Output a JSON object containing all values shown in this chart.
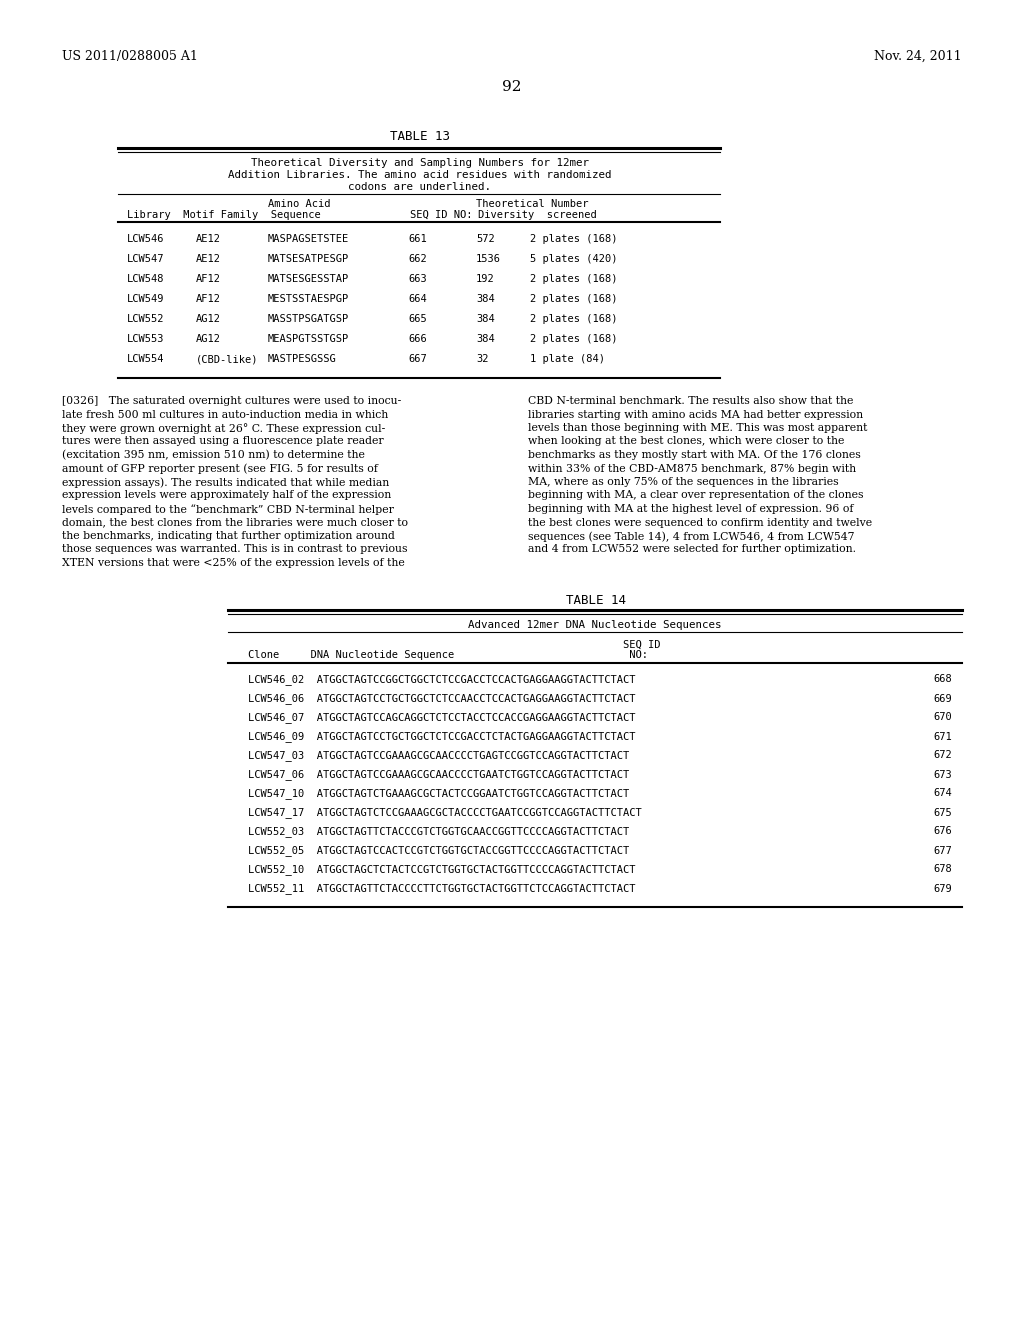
{
  "header_left": "US 2011/0288005 A1",
  "header_right": "Nov. 24, 2011",
  "page_number": "92",
  "table13_title": "TABLE 13",
  "table13_caption_lines": [
    "Theoretical Diversity and Sampling Numbers for 12mer",
    "Addition Libraries. The amino acid residues with randomized",
    "codons are underlined."
  ],
  "table13_rows": [
    [
      "LCW546",
      "AE12",
      "MASPAGSETSTEE",
      "661",
      "572",
      "2 plates (168)"
    ],
    [
      "LCW547",
      "AE12",
      "MATSESATPESGP",
      "662",
      "1536",
      "5 plates (420)"
    ],
    [
      "LCW548",
      "AF12",
      "MATSESGESSTAP",
      "663",
      "192",
      "2 plates (168)"
    ],
    [
      "LCW549",
      "AF12",
      "MESTSSTAESPGP",
      "664",
      "384",
      "2 plates (168)"
    ],
    [
      "LCW552",
      "AG12",
      "MASSTPSGATGSP",
      "665",
      "384",
      "2 plates (168)"
    ],
    [
      "LCW553",
      "AG12",
      "MEASPGTSSTGSP",
      "666",
      "384",
      "2 plates (168)"
    ],
    [
      "LCW554",
      "(CBD-like)",
      "MASTPESGSSG",
      "667",
      "32",
      "1 plate (84)"
    ]
  ],
  "left_lines": [
    "[0326]   The saturated overnight cultures were used to inocu-",
    "late fresh 500 ml cultures in auto-induction media in which",
    "they were grown overnight at 26° C. These expression cul-",
    "tures were then assayed using a fluorescence plate reader",
    "(excitation 395 nm, emission 510 nm) to determine the",
    "amount of GFP reporter present (see FIG. 5 for results of",
    "expression assays). The results indicated that while median",
    "expression levels were approximately half of the expression",
    "levels compared to the “benchmark” CBD N-terminal helper",
    "domain, the best clones from the libraries were much closer to",
    "the benchmarks, indicating that further optimization around",
    "those sequences was warranted. This is in contrast to previous",
    "XTEN versions that were <25% of the expression levels of the"
  ],
  "right_lines": [
    "CBD N-terminal benchmark. The results also show that the",
    "libraries starting with amino acids MA had better expression",
    "levels than those beginning with ME. This was most apparent",
    "when looking at the best clones, which were closer to the",
    "benchmarks as they mostly start with MA. Of the 176 clones",
    "within 33% of the CBD-AM875 benchmark, 87% begin with",
    "MA, where as only 75% of the sequences in the libraries",
    "beginning with MA, a clear over representation of the clones",
    "beginning with MA at the highest level of expression. 96 of",
    "the best clones were sequenced to confirm identity and twelve",
    "sequences (see Table 14), 4 from LCW546, 4 from LCW547",
    "and 4 from LCW552 were selected for further optimization."
  ],
  "table14_title": "TABLE 14",
  "table14_caption": "Advanced 12mer DNA Nucleotide Sequences",
  "table14_rows": [
    [
      "LCW546_02",
      "ATGGCTAGTCCGGCTGGCTCTCCGACCTCCACTGAGGAAGGTACTTCTACT",
      "668"
    ],
    [
      "LCW546_06",
      "ATGGCTAGTCCTGCTGGCTCTCCAACCTCCACTGAGGAAGGTACTTCTACT",
      "669"
    ],
    [
      "LCW546_07",
      "ATGGCTAGTCCAGCAGGCTCTCCTACCTCCACCGAGGAAGGTACTTCTACT",
      "670"
    ],
    [
      "LCW546_09",
      "ATGGCTAGTCCTGCTGGCTCTCCGACCTCTACTGAGGAAGGTACTTCTACT",
      "671"
    ],
    [
      "LCW547_03",
      "ATGGCTAGTCCGAAAGCGCAACCCCTGAGTCCGGTCCAGGTACTTCTACT",
      "672"
    ],
    [
      "LCW547_06",
      "ATGGCTAGTCCGAAAGCGCAACCCCTGAATCTGGTCCAGGTACTTCTACT",
      "673"
    ],
    [
      "LCW547_10",
      "ATGGCTAGTCTGAAAGCGCTACTCCGGAATCTGGTCCAGGTACTTCTACT",
      "674"
    ],
    [
      "LCW547_17",
      "ATGGCTAGTCTCCGAAAGCGCTACCCCTGAATCCGGTCCAGGTACTTCTACT",
      "675"
    ],
    [
      "LCW552_03",
      "ATGGCTAGTTCTACCCGTCTGGTGCAACCGGTTCCCCAGGTACTTCTACT",
      "676"
    ],
    [
      "LCW552_05",
      "ATGGCTAGTCCACTCCGTCTGGTGCTACCGGTTCCCCAGGTACTTCTACT",
      "677"
    ],
    [
      "LCW552_10",
      "ATGGCTAGCTCTACTCCGTCTGGTGCTACTGGTTCCCCAGGTACTTCTACT",
      "678"
    ],
    [
      "LCW552_11",
      "ATGGCTAGTTCTACCCCTTCTGGTGCTACTGGTTCTCCAGGTACTTCTACT",
      "679"
    ]
  ],
  "bg_color": "#ffffff"
}
